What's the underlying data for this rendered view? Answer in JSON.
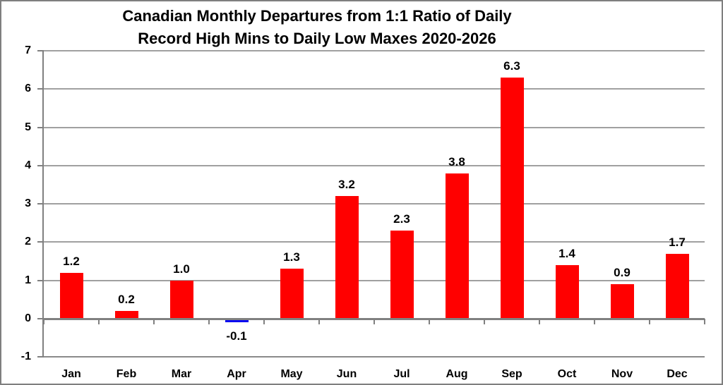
{
  "window": {
    "background": "#ffffff",
    "border_color": "#7f7f7f"
  },
  "chart_data": {
    "type": "bar",
    "title": "Canadian Monthly Departures from 1:1 Ratio of Daily Record High Mins to Daily Low Maxes 2020-2026",
    "title_lines": [
      "Canadian Monthly Departures from 1:1 Ratio of Daily",
      "Record High Mins to Daily Low Maxes 2020-2026"
    ],
    "categories": [
      "Jan",
      "Feb",
      "Mar",
      "Apr",
      "May",
      "Jun",
      "Jul",
      "Aug",
      "Sep",
      "Oct",
      "Nov",
      "Dec"
    ],
    "values": [
      1.2,
      0.2,
      1.0,
      -0.1,
      1.3,
      3.2,
      2.3,
      3.8,
      6.3,
      1.4,
      0.9,
      1.7
    ],
    "data_labels": [
      "1.2",
      "0.2",
      "1.0",
      "-0.1",
      "1.3",
      "3.2",
      "2.3",
      "3.8",
      "6.3",
      "1.4",
      "0.9",
      "1.7"
    ],
    "xlabel": "",
    "ylabel": "",
    "ylim": [
      -1,
      7
    ],
    "yticks": [
      7,
      6,
      5,
      4,
      3,
      2,
      1,
      0,
      -1
    ],
    "grid": true,
    "legend": "none",
    "bar_color_positive": "#ff0000",
    "bar_color_negative": "#0a0af0",
    "gridline_color": "#a0a0a0",
    "axis_color": "#808080",
    "text_color": "#000000"
  }
}
